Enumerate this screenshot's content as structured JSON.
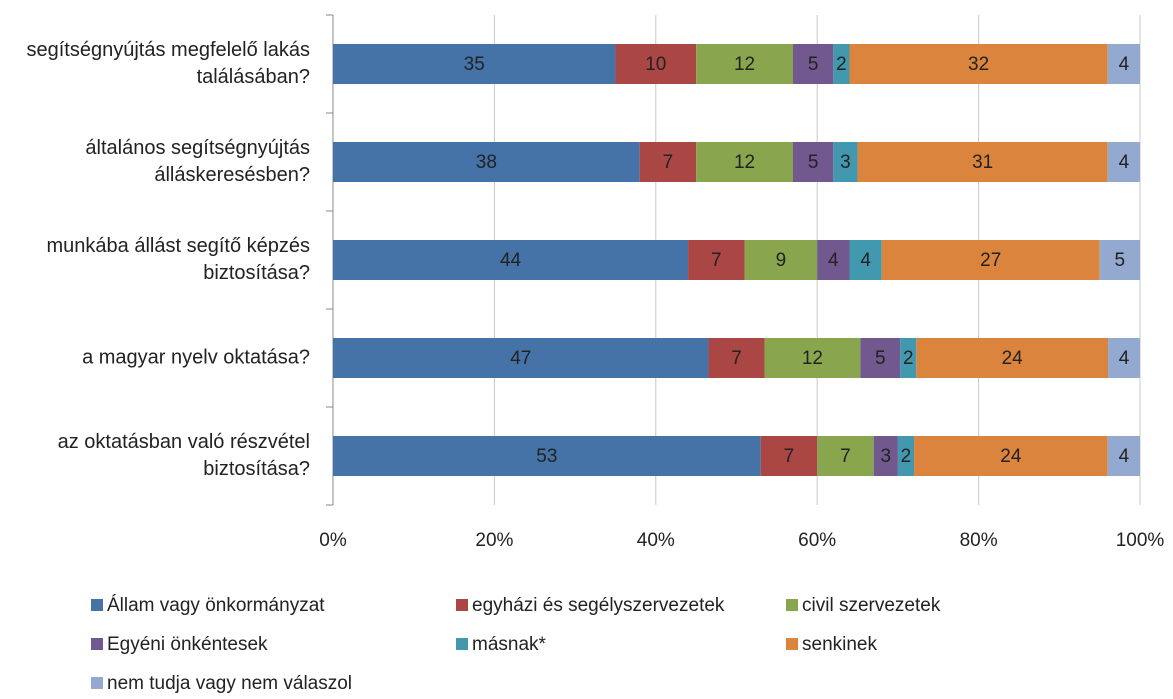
{
  "chart_data": {
    "type": "bar",
    "orientation": "horizontal",
    "stacked": "percent",
    "categories": [
      "segítségnyújtás megfelelő lakás találásában?",
      "általános segítségnyújtás álláskeresésben?",
      "munkába állást segítő képzés biztosítása?",
      "a magyar nyelv oktatása?",
      "az oktatásban való részvétel biztosítása?"
    ],
    "series": [
      {
        "name": "Állam vagy önkormányzat",
        "color": "#4572a7",
        "values": [
          35,
          38,
          44,
          47,
          53
        ]
      },
      {
        "name": "egyházi és segélyszervezetek",
        "color": "#aa4643",
        "values": [
          10,
          7,
          7,
          7,
          7
        ]
      },
      {
        "name": "civil szervezetek",
        "color": "#89a54e",
        "values": [
          12,
          12,
          9,
          12,
          7
        ]
      },
      {
        "name": "Egyéni önkéntesek",
        "color": "#71588f",
        "values": [
          5,
          5,
          4,
          5,
          3
        ]
      },
      {
        "name": "másnak*",
        "color": "#4198af",
        "values": [
          2,
          3,
          4,
          2,
          2
        ]
      },
      {
        "name": "senkinek",
        "color": "#db843d",
        "values": [
          32,
          31,
          27,
          24,
          24
        ]
      },
      {
        "name": "nem tudja vagy nem válaszol",
        "color": "#93a9cf",
        "values": [
          4,
          4,
          5,
          4,
          4
        ]
      }
    ],
    "xlim": [
      0,
      100
    ],
    "xticks": [
      {
        "value": 0,
        "label": "0%"
      },
      {
        "value": 20,
        "label": "20%"
      },
      {
        "value": 40,
        "label": "40%"
      },
      {
        "value": 60,
        "label": "60%"
      },
      {
        "value": 80,
        "label": "80%"
      },
      {
        "value": 100,
        "label": "100%"
      }
    ],
    "grid": true,
    "legend": "bottom"
  }
}
